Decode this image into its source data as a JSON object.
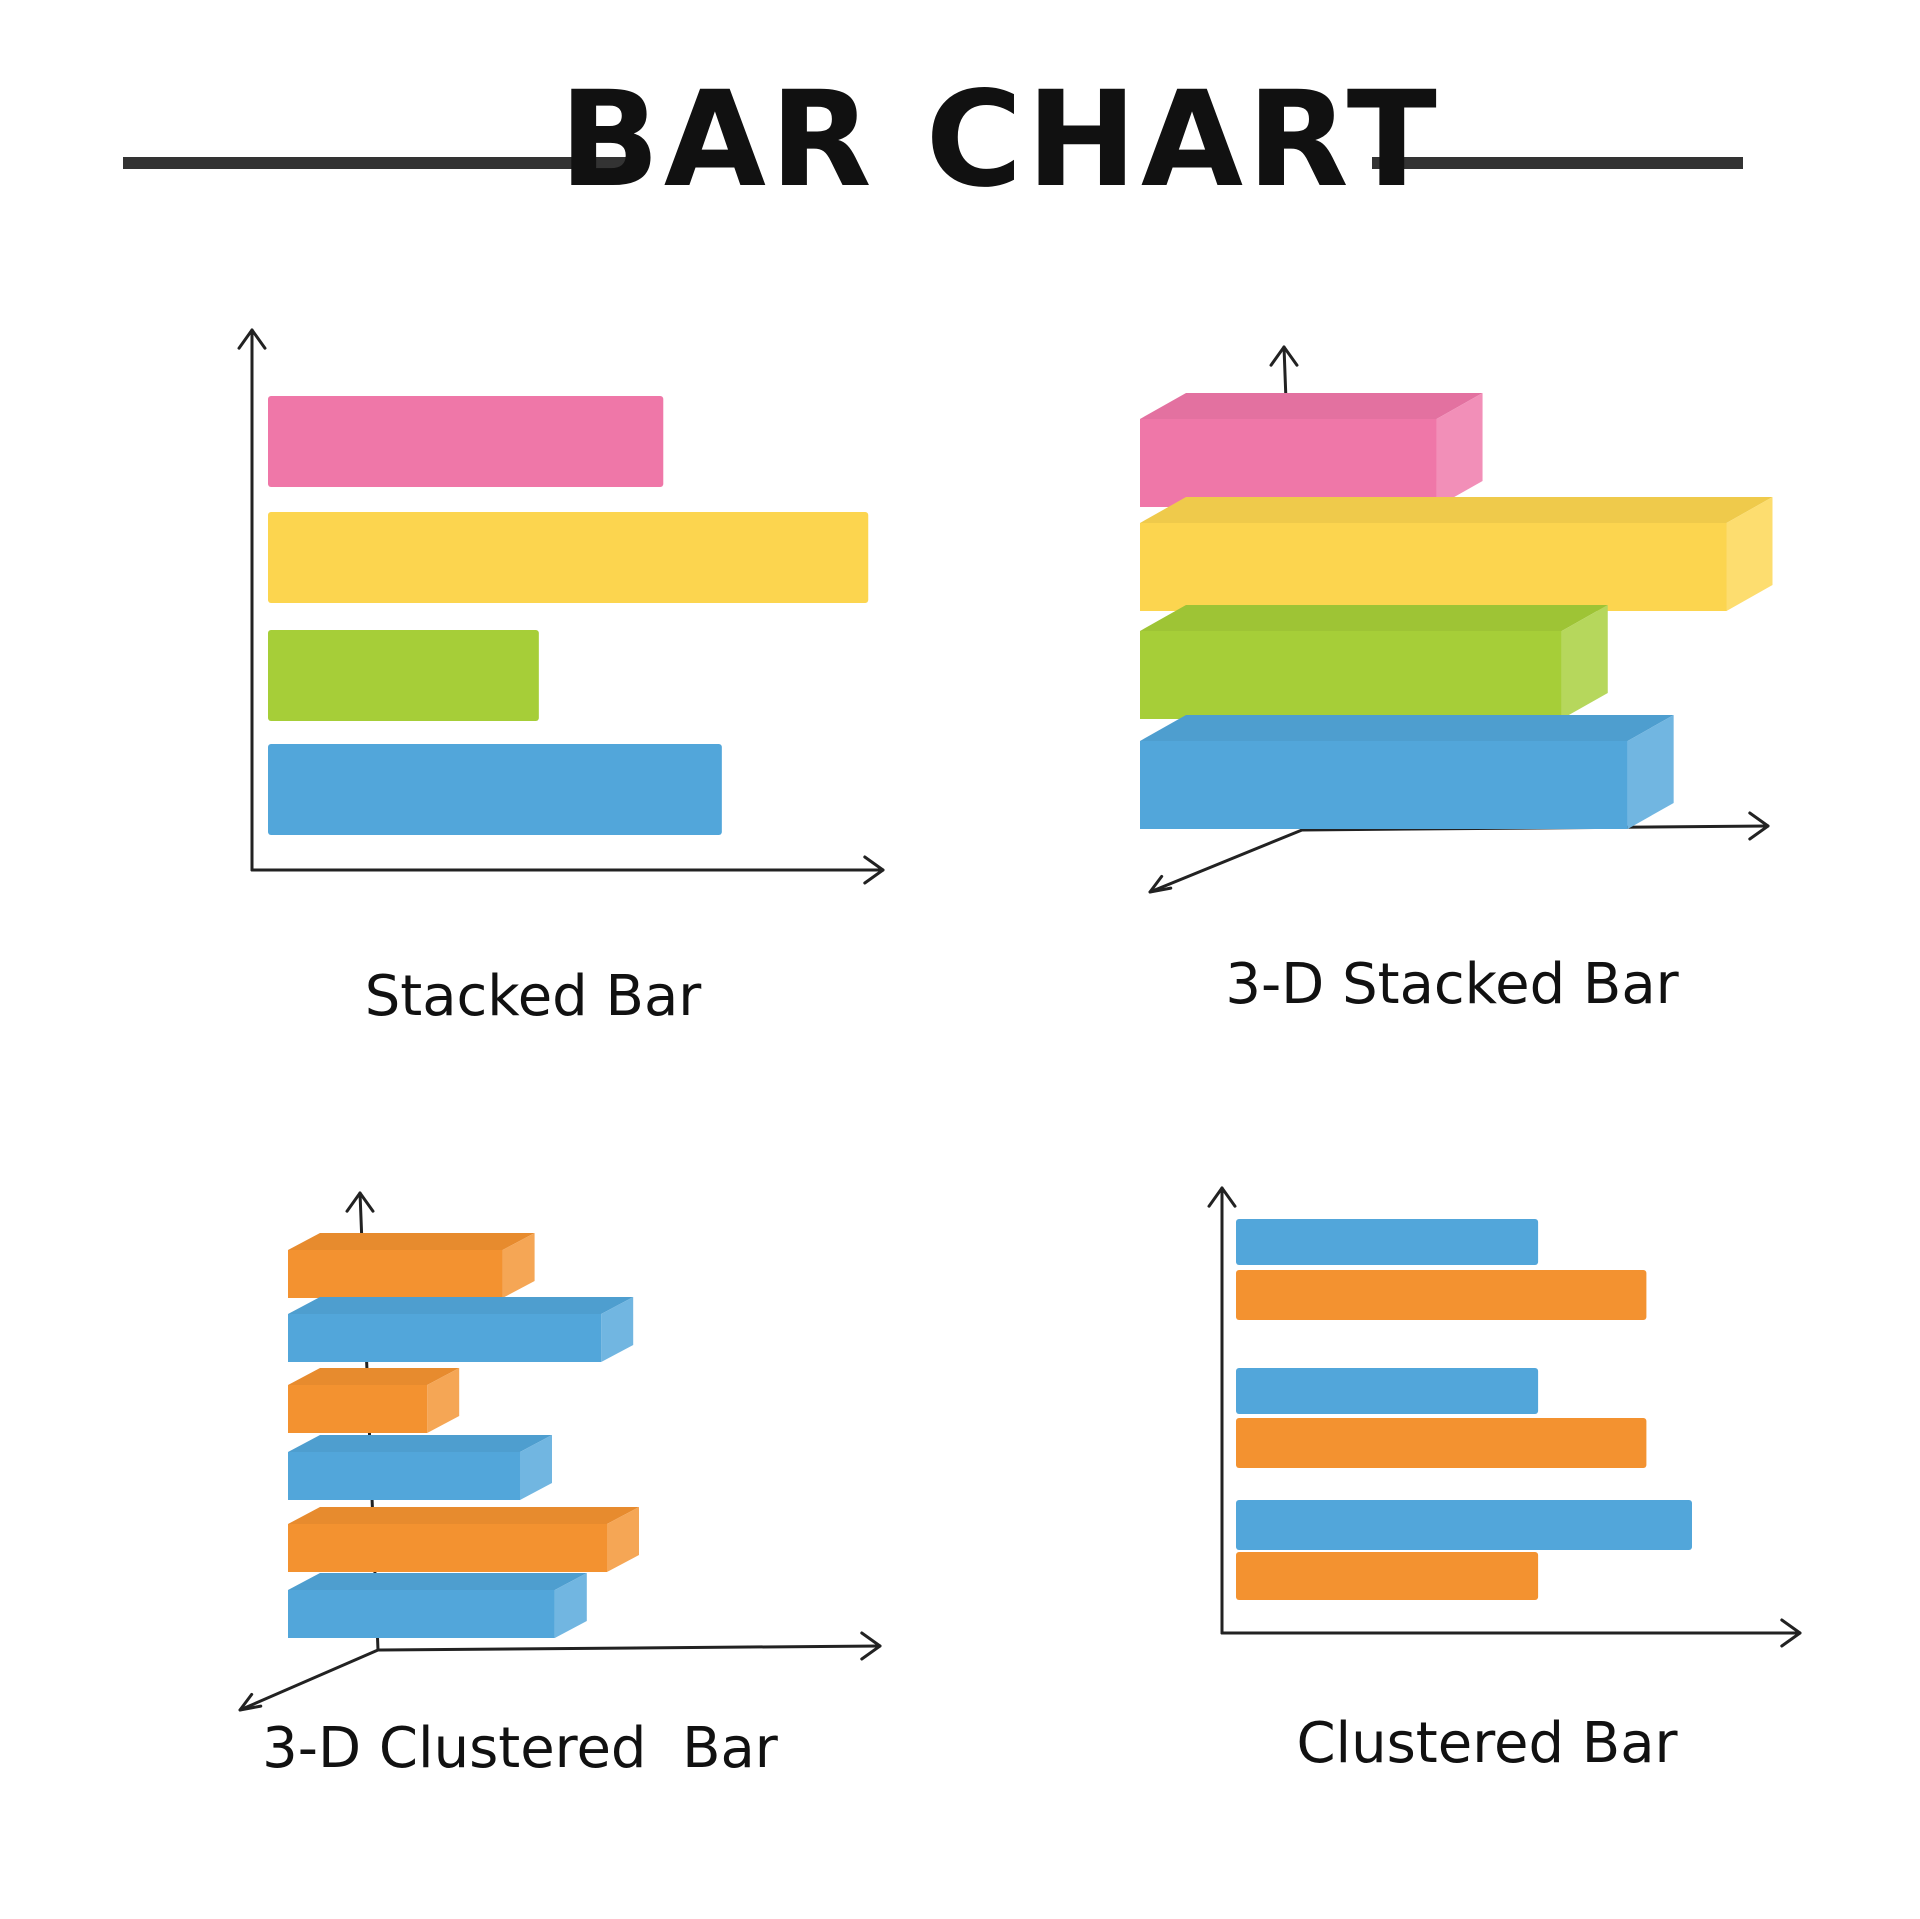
{
  "page": {
    "title": "BAR CHART"
  },
  "colors": {
    "pink": "#EF77A8",
    "yellow": "#FCD54F",
    "green": "#A6CE38",
    "blue": "#52A6DA",
    "orange": "#F39230"
  },
  "chart_data": [
    {
      "type": "bar",
      "variant": "stacked",
      "orientation": "horizontal",
      "label": "Stacked Bar",
      "three_d": false,
      "xlim": [
        0,
        100
      ],
      "series": [
        {
          "color": "#EF77A8",
          "values": [
            54
          ]
        },
        {
          "color": "#FCD54F",
          "values": [
            82
          ]
        },
        {
          "color": "#A6CE38",
          "values": [
            37
          ]
        },
        {
          "color": "#52A6DA",
          "values": [
            62
          ]
        }
      ],
      "grid": false
    },
    {
      "type": "bar",
      "variant": "stacked",
      "orientation": "horizontal",
      "label": "3-D Stacked Bar",
      "three_d": true,
      "xlim": [
        0,
        100
      ],
      "series": [
        {
          "color": "#EF77A8",
          "values": [
            45
          ]
        },
        {
          "color": "#FCD54F",
          "values": [
            89
          ]
        },
        {
          "color": "#A6CE38",
          "values": [
            64
          ]
        },
        {
          "color": "#52A6DA",
          "values": [
            74
          ]
        }
      ],
      "grid": false
    },
    {
      "type": "bar",
      "variant": "clustered",
      "orientation": "horizontal",
      "label": "3-D Clustered  Bar",
      "three_d": true,
      "xlim": [
        0,
        100
      ],
      "series": [
        {
          "color": "#F39230",
          "values": [
            37,
            24,
            55
          ]
        },
        {
          "color": "#52A6DA",
          "values": [
            54,
            40,
            46
          ]
        }
      ],
      "grid": false
    },
    {
      "type": "bar",
      "variant": "clustered",
      "orientation": "horizontal",
      "label": "Clustered Bar",
      "three_d": false,
      "xlim": [
        0,
        100
      ],
      "series": [
        {
          "color": "#52A6DA",
          "values": [
            53,
            53,
            80
          ]
        },
        {
          "color": "#F39230",
          "values": [
            72,
            72,
            53
          ]
        }
      ],
      "grid": false
    }
  ]
}
